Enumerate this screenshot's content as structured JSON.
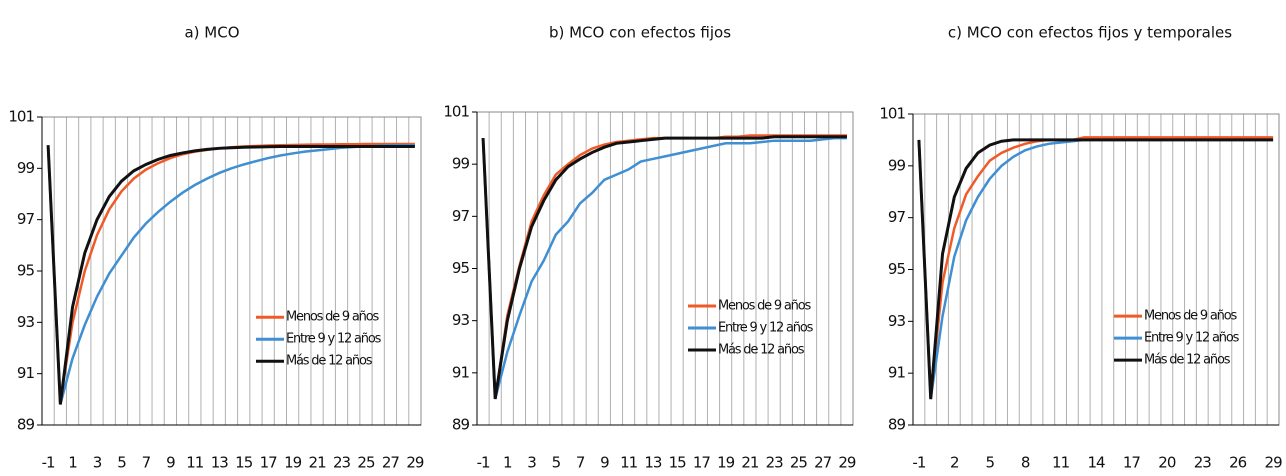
{
  "chart_data": [
    {
      "type": "line",
      "title": "a) MCO",
      "x": [
        -1,
        0,
        1,
        2,
        3,
        4,
        5,
        6,
        7,
        8,
        9,
        10,
        11,
        12,
        13,
        14,
        15,
        16,
        17,
        18,
        19,
        20,
        21,
        22,
        23,
        24,
        25,
        26,
        27,
        28,
        29
      ],
      "xlim": [
        -1.5,
        29.5
      ],
      "xticks": [
        -1,
        1,
        3,
        5,
        7,
        9,
        11,
        13,
        15,
        17,
        19,
        21,
        23,
        25,
        27,
        29
      ],
      "ylim": [
        89,
        101
      ],
      "yticks": [
        89,
        91,
        93,
        95,
        97,
        99,
        101
      ],
      "grid": true,
      "legend": "lower right",
      "series": [
        {
          "name": "Menos de 9 años",
          "color": "#f05a28",
          "values": [
            99.8,
            89.9,
            93,
            95,
            96.4,
            97.4,
            98.1,
            98.6,
            98.95,
            99.2,
            99.4,
            99.55,
            99.65,
            99.72,
            99.78,
            99.82,
            99.85,
            99.87,
            99.89,
            99.9,
            99.91,
            99.92,
            99.93,
            99.93,
            99.94,
            99.94,
            99.95,
            99.95,
            99.95,
            99.95,
            99.95
          ]
        },
        {
          "name": "Entre 9 y 12 años",
          "color": "#3f8fd2",
          "values": [
            99.9,
            89.8,
            91.6,
            92.9,
            94,
            94.9,
            95.6,
            96.3,
            96.85,
            97.3,
            97.7,
            98.05,
            98.35,
            98.6,
            98.82,
            99,
            99.15,
            99.28,
            99.4,
            99.5,
            99.58,
            99.65,
            99.7,
            99.75,
            99.8,
            99.83,
            99.86,
            99.88,
            99.9,
            99.9,
            99.9
          ]
        },
        {
          "name": "Más de 12 años",
          "color": "#111111",
          "values": [
            99.9,
            89.8,
            93.6,
            95.7,
            97,
            97.9,
            98.5,
            98.9,
            99.15,
            99.35,
            99.5,
            99.6,
            99.68,
            99.74,
            99.78,
            99.8,
            99.82,
            99.83,
            99.84,
            99.85,
            99.85,
            99.85,
            99.85,
            99.85,
            99.85,
            99.85,
            99.85,
            99.85,
            99.85,
            99.85,
            99.85
          ]
        }
      ]
    },
    {
      "type": "line",
      "title": "b) MCO con efectos fijos",
      "x": [
        -1,
        0,
        1,
        2,
        3,
        4,
        5,
        6,
        7,
        8,
        9,
        10,
        11,
        12,
        13,
        14,
        15,
        16,
        17,
        18,
        19,
        20,
        21,
        22,
        23,
        24,
        25,
        26,
        27,
        28,
        29
      ],
      "xlim": [
        -1.5,
        29.5
      ],
      "xticks": [
        -1,
        1,
        3,
        5,
        7,
        9,
        11,
        13,
        15,
        17,
        19,
        21,
        23,
        25,
        27,
        29
      ],
      "ylim": [
        89,
        101
      ],
      "yticks": [
        89,
        91,
        93,
        95,
        97,
        99,
        101
      ],
      "grid": true,
      "legend": "center right",
      "series": [
        {
          "name": "Menos de 9 años",
          "color": "#f05a28",
          "values": [
            100,
            90,
            93.2,
            95.1,
            96.8,
            97.8,
            98.6,
            99,
            99.35,
            99.6,
            99.75,
            99.85,
            99.9,
            99.95,
            100,
            100,
            100,
            100,
            100,
            100,
            100.05,
            100.05,
            100.1,
            100.1,
            100.1,
            100.1,
            100.1,
            100.1,
            100.1,
            100.1,
            100.1
          ]
        },
        {
          "name": "Entre 9 y 12 años",
          "color": "#3f8fd2",
          "values": [
            100,
            90,
            91.8,
            93.2,
            94.5,
            95.3,
            96.3,
            96.8,
            97.5,
            97.9,
            98.4,
            98.6,
            98.8,
            99.1,
            99.2,
            99.3,
            99.4,
            99.5,
            99.6,
            99.7,
            99.8,
            99.8,
            99.8,
            99.85,
            99.9,
            99.9,
            99.9,
            99.9,
            99.95,
            100,
            100
          ]
        },
        {
          "name": "Más de 12 años",
          "color": "#111111",
          "values": [
            100,
            90,
            93,
            95,
            96.6,
            97.6,
            98.4,
            98.9,
            99.2,
            99.45,
            99.65,
            99.8,
            99.85,
            99.9,
            99.95,
            100,
            100,
            100,
            100,
            100,
            100,
            100,
            100,
            100,
            100.05,
            100.05,
            100.05,
            100.05,
            100.05,
            100.05,
            100.05
          ]
        }
      ]
    },
    {
      "type": "line",
      "title": "c) MCO con efectos fijos y temporales",
      "x": [
        -1,
        0,
        1,
        2,
        3,
        4,
        5,
        6,
        7,
        8,
        9,
        10,
        11,
        12,
        13,
        14,
        15,
        16,
        17,
        18,
        19,
        20,
        21,
        22,
        23,
        24,
        25,
        26,
        27,
        28,
        29
      ],
      "xlim": [
        -1.5,
        29.5
      ],
      "xticks": [
        -1,
        2,
        5,
        8,
        11,
        14,
        17,
        20,
        23,
        26,
        29
      ],
      "ylim": [
        89,
        101
      ],
      "yticks": [
        89,
        91,
        93,
        95,
        97,
        99,
        101
      ],
      "grid": true,
      "legend": "lower right",
      "series": [
        {
          "name": "Menos de 9 años",
          "color": "#f05a28",
          "values": [
            100,
            90.1,
            94.5,
            96.6,
            97.9,
            98.6,
            99.2,
            99.5,
            99.7,
            99.85,
            99.95,
            100,
            100,
            100,
            100.1,
            100.1,
            100.1,
            100.1,
            100.1,
            100.1,
            100.1,
            100.1,
            100.1,
            100.1,
            100.1,
            100.1,
            100.1,
            100.1,
            100.1,
            100.1,
            100.1
          ]
        },
        {
          "name": "Entre 9 y 12 años",
          "color": "#3f8fd2",
          "values": [
            100,
            90,
            93.2,
            95.5,
            96.9,
            97.8,
            98.5,
            99,
            99.35,
            99.6,
            99.75,
            99.85,
            99.9,
            99.95,
            100,
            100,
            100,
            100,
            100,
            100,
            100,
            100,
            100,
            100,
            100,
            100,
            100,
            100,
            100,
            100,
            100
          ]
        },
        {
          "name": "Más de 12 años",
          "color": "#111111",
          "values": [
            100,
            90,
            95.6,
            97.8,
            98.9,
            99.5,
            99.8,
            99.95,
            100,
            100,
            100,
            100,
            100,
            100,
            100,
            100,
            100,
            100,
            100,
            100,
            100,
            100,
            100,
            100,
            100,
            100,
            100,
            100,
            100,
            100,
            100
          ]
        }
      ]
    }
  ]
}
